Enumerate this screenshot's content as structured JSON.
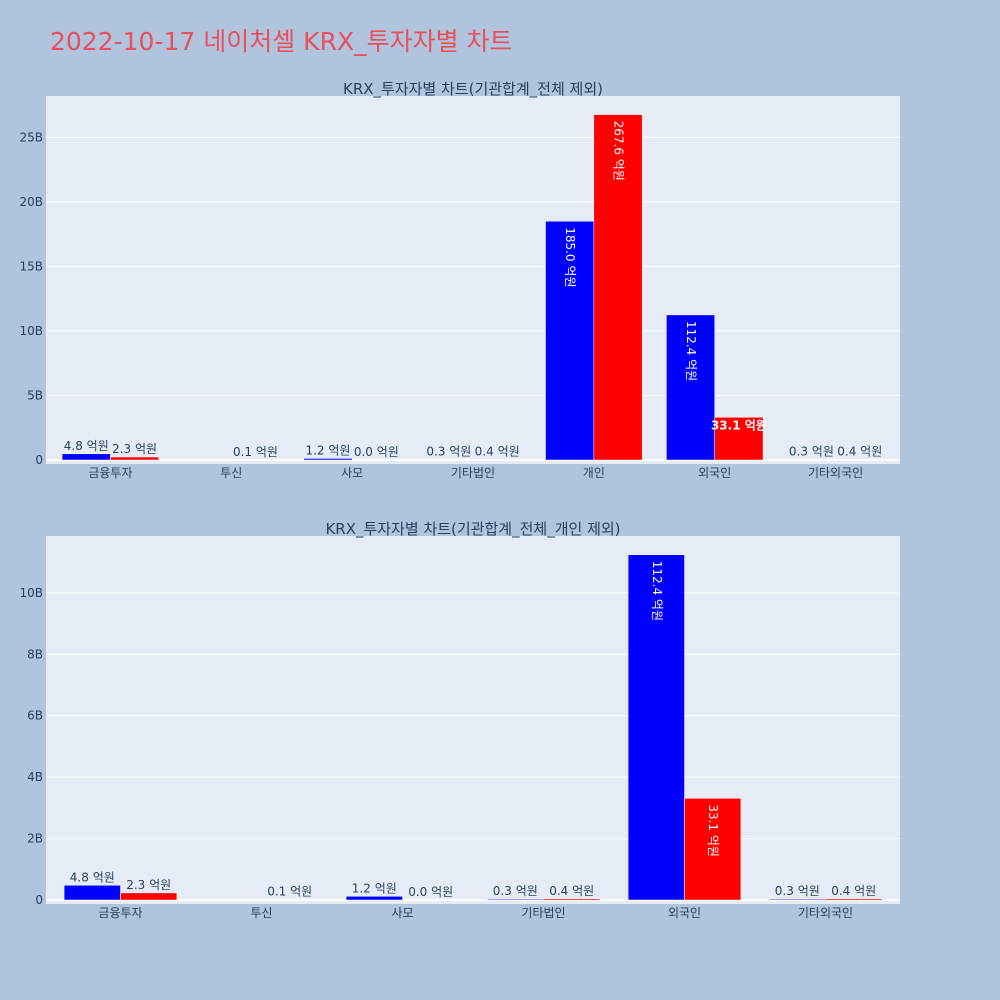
{
  "page": {
    "title": "2022-10-17 네이처셀 KRX_투자자별 차트"
  },
  "colors": {
    "background": "#b0c4de",
    "plot_bg": "#e5ecf6",
    "series_a": "#0000ff",
    "series_b": "#ff0000",
    "title": "#e8505b",
    "text": "#2a3f5f"
  },
  "chart_data": [
    {
      "type": "bar",
      "title": "KRX_투자자별 차트(기관합계_전체 제외)",
      "categories": [
        "금융투자",
        "투신",
        "사모",
        "기타법인",
        "개인",
        "외국인",
        "기타외국인"
      ],
      "series": [
        {
          "color": "#0000ff",
          "values": [
            0.48,
            0.0,
            0.12,
            0.03,
            18.5,
            11.24,
            0.03
          ],
          "labels": [
            "4.8 억원",
            "",
            "1.2 억원",
            "0.3 억원",
            "185.0 억원",
            "112.4 억원",
            "0.3 억원"
          ]
        },
        {
          "color": "#ff0000",
          "values": [
            0.23,
            0.01,
            0.0,
            0.04,
            26.76,
            3.31,
            0.04
          ],
          "labels": [
            "2.3 억원",
            "0.1 억원",
            "0.0 억원",
            "0.4 억원",
            "267.6 억원",
            "33.1 억원",
            "0.4 억원"
          ]
        }
      ],
      "yunit": "B",
      "ylim": [
        0,
        28.2
      ],
      "yticks": [
        0,
        5,
        10,
        15,
        20,
        25
      ],
      "ytick_labels": [
        "0",
        "5B",
        "10B",
        "15B",
        "20B",
        "25B"
      ],
      "grid": true
    },
    {
      "type": "bar",
      "title": "KRX_투자자별 차트(기관합계_전체_개인 제외)",
      "categories": [
        "금융투자",
        "투신",
        "사모",
        "기타법인",
        "외국인",
        "기타외국인"
      ],
      "series": [
        {
          "color": "#0000ff",
          "values": [
            0.48,
            0.0,
            0.12,
            0.03,
            11.24,
            0.03
          ],
          "labels": [
            "4.8 억원",
            "",
            "1.2 억원",
            "0.3 억원",
            "112.4 억원",
            "0.3 억원"
          ]
        },
        {
          "color": "#ff0000",
          "values": [
            0.23,
            0.01,
            0.0,
            0.04,
            3.31,
            0.04
          ],
          "labels": [
            "2.3 억원",
            "0.1 억원",
            "0.0 억원",
            "0.4 억원",
            "33.1 억원",
            "0.4 억원"
          ]
        }
      ],
      "yunit": "B",
      "ylim": [
        0,
        11.85
      ],
      "yticks": [
        0,
        2,
        4,
        6,
        8,
        10
      ],
      "ytick_labels": [
        "0",
        "2B",
        "4B",
        "6B",
        "8B",
        "10B"
      ],
      "grid": true
    }
  ]
}
